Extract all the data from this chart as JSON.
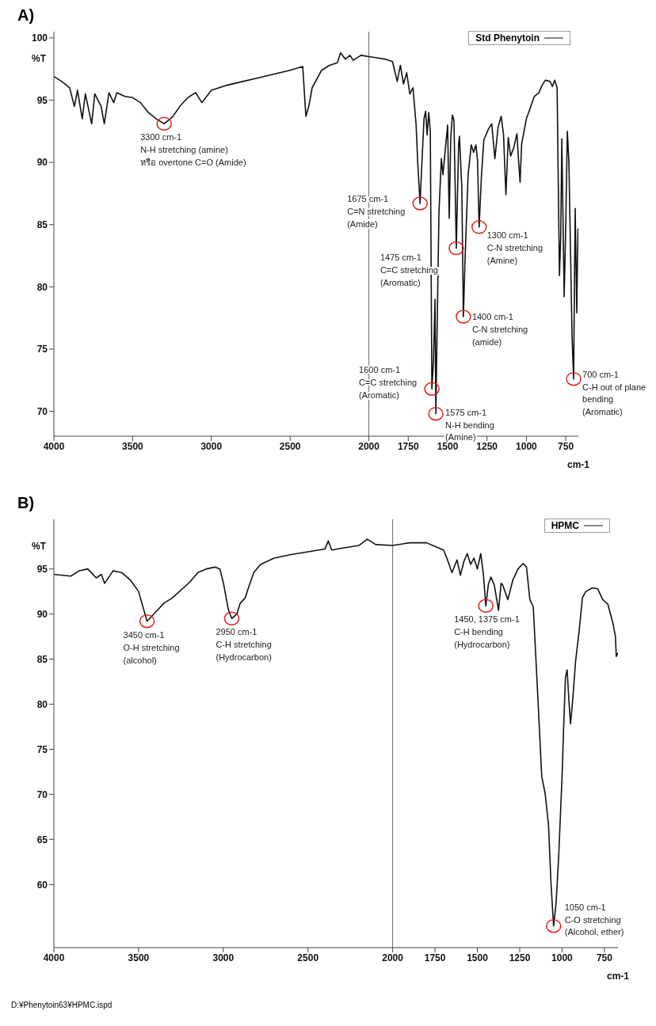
{
  "chart_data": [
    {
      "type": "line",
      "title": "A)",
      "xlabel": "cm-1",
      "ylabel": "%T",
      "xlim": [
        4000,
        670
      ],
      "xticks": [
        4000,
        3500,
        3000,
        2500,
        2000,
        1750,
        1500,
        1250,
        1000,
        750
      ],
      "ylim": [
        68,
        100.5
      ],
      "yticks": [
        70,
        75,
        80,
        85,
        90,
        95,
        100
      ],
      "legend": "top right",
      "ref_lines": [
        {
          "axis": "x",
          "value": 2000,
          "label": null,
          "color": "#666666"
        }
      ],
      "series": [
        {
          "name": "Std Phenytoin",
          "color": "#111111",
          "x": [
            4000,
            3950,
            3900,
            3870,
            3850,
            3820,
            3800,
            3760,
            3740,
            3700,
            3680,
            3650,
            3620,
            3600,
            3550,
            3500,
            3450,
            3400,
            3350,
            3300,
            3250,
            3200,
            3150,
            3100,
            3080,
            3060,
            3000,
            2900,
            2800,
            2700,
            2600,
            2500,
            2420,
            2400,
            2380,
            2360,
            2300,
            2250,
            2200,
            2180,
            2150,
            2120,
            2100,
            2050,
            2000,
            1950,
            1900,
            1850,
            1820,
            1800,
            1780,
            1760,
            1740,
            1720,
            1700,
            1690,
            1675,
            1665,
            1650,
            1640,
            1630,
            1620,
            1610,
            1600,
            1590,
            1580,
            1575,
            1565,
            1555,
            1540,
            1530,
            1515,
            1500,
            1490,
            1480,
            1470,
            1460,
            1445,
            1430,
            1425,
            1410,
            1400,
            1390,
            1370,
            1350,
            1335,
            1320,
            1310,
            1300,
            1285,
            1270,
            1240,
            1220,
            1200,
            1180,
            1160,
            1145,
            1130,
            1115,
            1100,
            1080,
            1060,
            1050,
            1040,
            1030,
            1000,
            980,
            950,
            920,
            900,
            880,
            850,
            835,
            820,
            805,
            790,
            782,
            775,
            768,
            760,
            750,
            740,
            730,
            720,
            710,
            700,
            695,
            690,
            685,
            680,
            676,
            672
          ],
          "values": [
            96.9,
            96.5,
            96,
            94.5,
            95.8,
            93.5,
            95.5,
            93.1,
            95.5,
            94.5,
            93.1,
            95.6,
            94.8,
            95.6,
            95.3,
            95.2,
            94.8,
            94,
            93.5,
            93.1,
            93.6,
            94.5,
            95.2,
            95.6,
            95.2,
            94.8,
            95.8,
            96.2,
            96.5,
            96.8,
            97.1,
            97.4,
            97.7,
            93.7,
            94.6,
            96,
            97.4,
            97.8,
            98,
            98.8,
            98.3,
            98.6,
            98.2,
            98.6,
            98.5,
            98.4,
            98.3,
            98.1,
            96.5,
            97.8,
            96.3,
            97.2,
            95.5,
            96,
            93,
            90,
            86.7,
            89.5,
            93.5,
            94.1,
            92.2,
            94,
            92.5,
            71.8,
            74,
            79,
            69.8,
            78,
            86,
            90.3,
            89,
            91,
            93,
            85.5,
            92,
            93.8,
            93.4,
            83.1,
            91.5,
            92.1,
            88,
            77.6,
            82,
            89,
            91.4,
            90.8,
            91.4,
            90.1,
            84.8,
            89,
            91.8,
            92.7,
            93.1,
            90.3,
            92.8,
            93.7,
            92.2,
            87.4,
            92,
            90.5,
            91.2,
            92.3,
            90.2,
            88.4,
            91.5,
            93.5,
            94.2,
            95.3,
            95.6,
            96.2,
            96.6,
            96.5,
            96.1,
            96.6,
            96,
            80.9,
            84,
            91.9,
            86,
            79.2,
            85,
            92.5,
            90,
            83,
            76,
            72.6,
            80,
            86.3,
            82,
            77.9,
            82,
            84.7
          ]
        }
      ],
      "annotations": [
        {
          "text": "3300 cm-1\nN-H stretching (amine)\nหรือ overtone C=O (Amide)",
          "x": 3300,
          "y": 93.1
        },
        {
          "text": "1675 cm-1\nC=N stretching\n(Amide)",
          "x": 1675,
          "y": 86.7
        },
        {
          "text": "1475 cm-1\nC=C stretching\n(Aromatic)",
          "x": 1445,
          "y": 83.1
        },
        {
          "text": "1300 cm-1\nC-N stretching\n(Amine)",
          "x": 1300,
          "y": 84.8
        },
        {
          "text": "1400 cm-1\nC-N stretching\n(amide)",
          "x": 1400,
          "y": 77.6
        },
        {
          "text": "1600 cm-1\nC=C stretching\n(Aromatic)",
          "x": 1600,
          "y": 71.8
        },
        {
          "text": "1575 cm-1\nN-H bending\n(Amine)",
          "x": 1575,
          "y": 69.8
        },
        {
          "text": "700 cm-1\nC-H out of plane\nbending\n(Aromatic)",
          "x": 700,
          "y": 72.6
        }
      ]
    },
    {
      "type": "line",
      "title": "B)",
      "xlabel": "cm-1",
      "ylabel": "%T",
      "xlim": [
        4000,
        670
      ],
      "xticks": [
        4000,
        3500,
        3000,
        2500,
        2000,
        1750,
        1500,
        1250,
        1000,
        750
      ],
      "ylim": [
        53,
        100.5
      ],
      "yticks": [
        60,
        65,
        70,
        75,
        80,
        85,
        90,
        95
      ],
      "legend": "top right",
      "ref_lines": [
        {
          "axis": "x",
          "value": 2000,
          "label": null,
          "color": "#666666"
        }
      ],
      "series": [
        {
          "name": "HPMC",
          "color": "#111111",
          "x": [
            4000,
            3900,
            3850,
            3800,
            3750,
            3720,
            3700,
            3650,
            3600,
            3550,
            3500,
            3450,
            3400,
            3350,
            3300,
            3200,
            3150,
            3100,
            3050,
            3020,
            3000,
            2970,
            2950,
            2920,
            2900,
            2870,
            2850,
            2820,
            2780,
            2700,
            2600,
            2500,
            2400,
            2380,
            2360,
            2300,
            2200,
            2150,
            2100,
            2000,
            1900,
            1800,
            1750,
            1700,
            1680,
            1650,
            1620,
            1600,
            1580,
            1560,
            1540,
            1520,
            1500,
            1480,
            1465,
            1450,
            1435,
            1420,
            1400,
            1375,
            1360,
            1350,
            1320,
            1290,
            1260,
            1230,
            1210,
            1190,
            1170,
            1150,
            1120,
            1100,
            1080,
            1065,
            1050,
            1035,
            1020,
            1000,
            990,
            980,
            970,
            960,
            950,
            935,
            920,
            900,
            880,
            860,
            820,
            790,
            760,
            730,
            700,
            685,
            680,
            670
          ],
          "values": [
            94.4,
            94.2,
            94.8,
            95,
            94,
            94.4,
            93.4,
            94.8,
            94.6,
            93.8,
            92.5,
            89.2,
            90.2,
            91.2,
            91.8,
            93.5,
            94.6,
            95,
            95.2,
            95,
            93.5,
            90.5,
            89.5,
            90,
            91.2,
            91.8,
            93,
            94.6,
            95.5,
            96.2,
            96.6,
            96.9,
            97.2,
            98.1,
            97.1,
            97.3,
            97.6,
            98.3,
            97.7,
            97.6,
            97.9,
            97.9,
            97.5,
            97.1,
            96.2,
            94.6,
            96,
            94.3,
            95.8,
            96.7,
            95.5,
            96.2,
            95,
            96.7,
            94.5,
            90.9,
            93.3,
            94.1,
            93.2,
            90.4,
            93.4,
            93.2,
            91.6,
            93.8,
            95,
            95.6,
            95.2,
            91.6,
            90.8,
            83.4,
            72,
            70.1,
            66.6,
            60,
            55.4,
            58,
            63.1,
            72,
            77.8,
            83,
            83.8,
            80.5,
            77.8,
            81,
            84.8,
            88,
            91.8,
            92.5,
            92.9,
            92.8,
            91.6,
            91.1,
            89,
            87.5,
            85.3,
            85.7
          ]
        }
      ],
      "annotations": [
        {
          "text": "3450 cm-1\nO-H stretching\n(alcohol)",
          "x": 3450,
          "y": 89.2
        },
        {
          "text": "2950 cm-1\nC-H stretching\n(Hydrocarbon)",
          "x": 2950,
          "y": 89.5
        },
        {
          "text": "1450, 1375 cm-1\nC-H bending\n(Hydrocarbon)",
          "x": 1450,
          "y": 90.9
        },
        {
          "text": "1050 cm-1\nC-O stretching\n(Alcohol, ether)",
          "x": 1050,
          "y": 55.4
        },
        "D:¥Phenytoin63¥HPMC.ispd"
      ]
    }
  ]
}
